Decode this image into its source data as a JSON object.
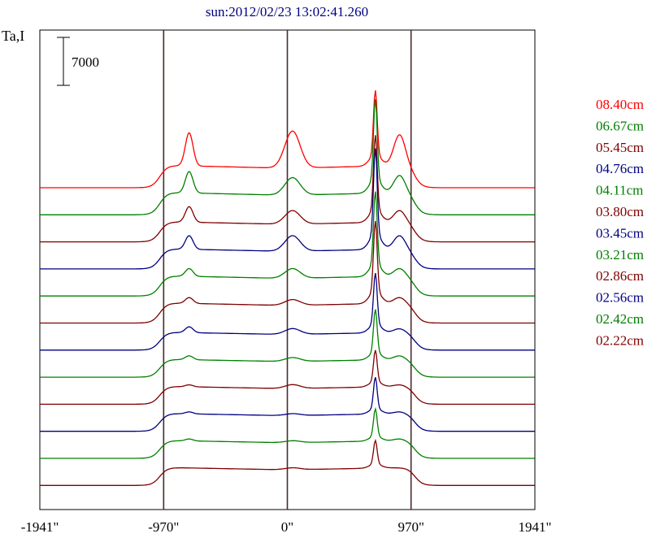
{
  "chart_data": {
    "type": "line",
    "title": "sun:2012/02/23 13:02:41.260",
    "ylabel": "Ta,I",
    "scale_bar_label": "7000",
    "xlim": [
      -1941,
      1941
    ],
    "x_ticks": [
      {
        "value": -1941,
        "label": "-1941\""
      },
      {
        "value": -970,
        "label": "-970\""
      },
      {
        "value": 0,
        "label": "0\""
      },
      {
        "value": 970,
        "label": "970\""
      },
      {
        "value": 1941,
        "label": "1941\""
      }
    ],
    "vertical_lines": [
      -970,
      0,
      970
    ],
    "series": [
      {
        "name": "08.40cm",
        "color": "#ff0000",
        "peak": 3.3,
        "base_limb": 1.0,
        "center_bump": 1.9,
        "left_bump": 1.7,
        "right_bump": 1.6
      },
      {
        "name": "06.67cm",
        "color": "#008000",
        "peak": 4.1,
        "base_limb": 1.0,
        "center_bump": 0.9,
        "left_bump": 1.1,
        "right_bump": 0.9
      },
      {
        "name": "05.45cm",
        "color": "#800000",
        "peak": 3.8,
        "base_limb": 0.9,
        "center_bump": 0.7,
        "left_bump": 0.8,
        "right_bump": 0.6
      },
      {
        "name": "04.76cm",
        "color": "#000080",
        "peak": 4.4,
        "base_limb": 0.9,
        "center_bump": 0.8,
        "left_bump": 0.7,
        "right_bump": 0.7
      },
      {
        "name": "04.11cm",
        "color": "#008000",
        "peak": 3.7,
        "base_limb": 0.9,
        "center_bump": 0.5,
        "left_bump": 0.4,
        "right_bump": 0.4
      },
      {
        "name": "03.80cm",
        "color": "#800000",
        "peak": 3.6,
        "base_limb": 0.9,
        "center_bump": 0.3,
        "left_bump": 0.3,
        "right_bump": 0.3
      },
      {
        "name": "03.45cm",
        "color": "#000080",
        "peak": 2.6,
        "base_limb": 0.8,
        "center_bump": 0.3,
        "left_bump": 0.3,
        "right_bump": 0.2
      },
      {
        "name": "03.21cm",
        "color": "#008000",
        "peak": 2.2,
        "base_limb": 0.8,
        "center_bump": 0.2,
        "left_bump": 0.2,
        "right_bump": 0.2
      },
      {
        "name": "02.86cm",
        "color": "#800000",
        "peak": 1.6,
        "base_limb": 0.8,
        "center_bump": 0.2,
        "left_bump": 0.1,
        "right_bump": 0.1
      },
      {
        "name": "02.56cm",
        "color": "#000080",
        "peak": 1.6,
        "base_limb": 0.8,
        "center_bump": 0.1,
        "left_bump": 0.1,
        "right_bump": 0.1
      },
      {
        "name": "02.42cm",
        "color": "#008000",
        "peak": 1.4,
        "base_limb": 0.8,
        "center_bump": 0.1,
        "left_bump": 0.1,
        "right_bump": 0.1
      },
      {
        "name": "02.22cm",
        "color": "#800000",
        "peak": 1.2,
        "base_limb": 0.8,
        "center_bump": 0.1,
        "left_bump": 0.0,
        "right_bump": 0.0
      }
    ],
    "grid": false,
    "legend_position": "right"
  }
}
